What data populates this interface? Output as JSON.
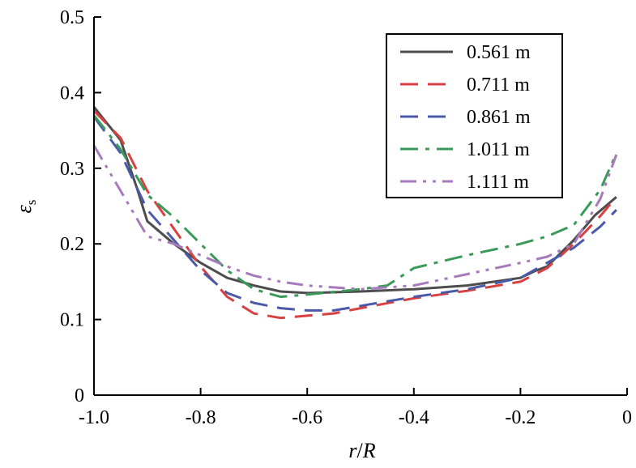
{
  "chart_data": {
    "type": "line",
    "xlabel_parts": [
      "r",
      "/",
      "R"
    ],
    "ylabel": "ε",
    "ylabel_sub": "s",
    "xlim": [
      -1.0,
      0
    ],
    "ylim": [
      0,
      0.5
    ],
    "x_ticks": [
      -1.0,
      -0.8,
      -0.6,
      -0.4,
      -0.2,
      0
    ],
    "x_tick_labels": [
      "-1.0",
      "-0.8",
      "-0.6",
      "-0.4",
      "-0.2",
      "0"
    ],
    "y_ticks": [
      0,
      0.1,
      0.2,
      0.3,
      0.4,
      0.5
    ],
    "y_tick_labels": [
      "0",
      "0.1",
      "0.2",
      "0.3",
      "0.4",
      "0.5"
    ],
    "grid": false,
    "legend_position": "top-right",
    "series": [
      {
        "name": "0.561 m",
        "color": "#4d4d4d",
        "dash": "solid",
        "x": [
          -1.0,
          -0.95,
          -0.92,
          -0.9,
          -0.85,
          -0.8,
          -0.75,
          -0.7,
          -0.65,
          -0.6,
          -0.5,
          -0.4,
          -0.3,
          -0.2,
          -0.17,
          -0.15,
          -0.1,
          -0.06,
          -0.02
        ],
        "y": [
          0.381,
          0.337,
          0.275,
          0.23,
          0.2,
          0.175,
          0.155,
          0.145,
          0.137,
          0.135,
          0.137,
          0.14,
          0.145,
          0.155,
          0.165,
          0.17,
          0.205,
          0.238,
          0.262
        ]
      },
      {
        "name": "0.711 m",
        "color": "#d94040",
        "dash": "dashed",
        "x": [
          -1.0,
          -0.95,
          -0.9,
          -0.85,
          -0.8,
          -0.75,
          -0.7,
          -0.65,
          -0.6,
          -0.55,
          -0.5,
          -0.4,
          -0.3,
          -0.2,
          -0.15,
          -0.1,
          -0.05,
          -0.02
        ],
        "y": [
          0.376,
          0.34,
          0.27,
          0.22,
          0.17,
          0.13,
          0.108,
          0.102,
          0.105,
          0.108,
          0.115,
          0.128,
          0.138,
          0.15,
          0.168,
          0.2,
          0.237,
          0.262
        ]
      },
      {
        "name": "0.861 m",
        "color": "#4a5aa8",
        "dash": "dashed",
        "x": [
          -1.0,
          -0.95,
          -0.9,
          -0.85,
          -0.8,
          -0.75,
          -0.7,
          -0.65,
          -0.6,
          -0.55,
          -0.5,
          -0.4,
          -0.3,
          -0.2,
          -0.15,
          -0.1,
          -0.05,
          -0.02
        ],
        "y": [
          0.368,
          0.32,
          0.245,
          0.205,
          0.165,
          0.135,
          0.122,
          0.115,
          0.112,
          0.112,
          0.118,
          0.13,
          0.14,
          0.155,
          0.175,
          0.195,
          0.223,
          0.245
        ]
      },
      {
        "name": "1.011 m",
        "color": "#3a9a5a",
        "dash": "dash-dot",
        "x": [
          -1.0,
          -0.95,
          -0.9,
          -0.85,
          -0.8,
          -0.75,
          -0.7,
          -0.65,
          -0.6,
          -0.5,
          -0.45,
          -0.4,
          -0.3,
          -0.2,
          -0.15,
          -0.1,
          -0.05,
          -0.02
        ],
        "y": [
          0.37,
          0.325,
          0.265,
          0.235,
          0.2,
          0.165,
          0.14,
          0.13,
          0.133,
          0.14,
          0.145,
          0.168,
          0.185,
          0.2,
          0.21,
          0.225,
          0.272,
          0.32
        ]
      },
      {
        "name": "1.111 m",
        "color": "#a77bbb",
        "dash": "dash-dot-dot",
        "x": [
          -1.0,
          -0.95,
          -0.9,
          -0.85,
          -0.8,
          -0.75,
          -0.7,
          -0.65,
          -0.6,
          -0.5,
          -0.4,
          -0.3,
          -0.2,
          -0.15,
          -0.1,
          -0.05,
          -0.02
        ],
        "y": [
          0.33,
          0.27,
          0.21,
          0.2,
          0.185,
          0.17,
          0.158,
          0.15,
          0.145,
          0.14,
          0.145,
          0.16,
          0.175,
          0.183,
          0.2,
          0.26,
          0.318
        ]
      }
    ]
  }
}
